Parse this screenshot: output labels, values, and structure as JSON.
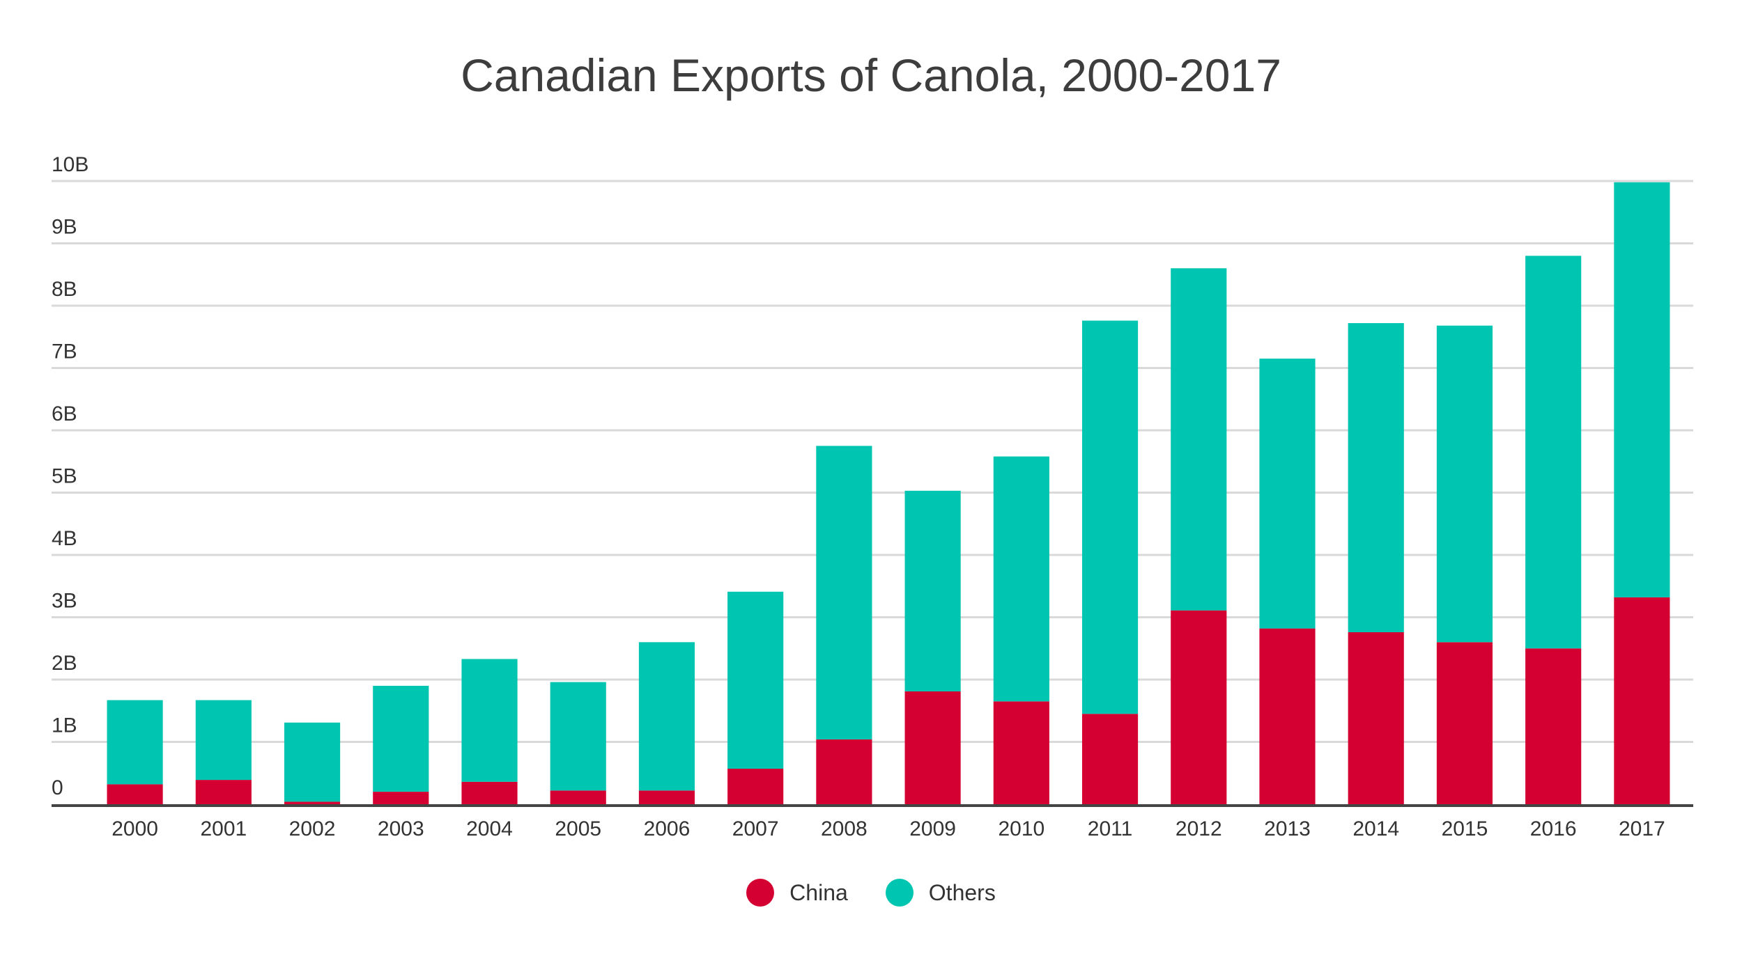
{
  "chart_data": {
    "type": "bar",
    "stacked": true,
    "title": "Canadian Exports of Canola, 2000-2017",
    "xlabel": "",
    "ylabel": "",
    "ylim": [
      0,
      10
    ],
    "y_unit": "B",
    "yticks": [
      "0",
      "1B",
      "2B",
      "3B",
      "4B",
      "5B",
      "6B",
      "7B",
      "8B",
      "9B",
      "10B"
    ],
    "grid": true,
    "legend_position": "bottom",
    "categories": [
      "2000",
      "2001",
      "2002",
      "2003",
      "2004",
      "2005",
      "2006",
      "2007",
      "2008",
      "2009",
      "2010",
      "2011",
      "2012",
      "2013",
      "2014",
      "2015",
      "2016",
      "2017"
    ],
    "series": [
      {
        "name": "China",
        "color": "#d50032",
        "values": [
          0.32,
          0.39,
          0.04,
          0.2,
          0.36,
          0.22,
          0.22,
          0.57,
          1.04,
          1.81,
          1.65,
          1.45,
          3.11,
          2.82,
          2.76,
          2.6,
          2.5,
          3.32
        ]
      },
      {
        "name": "Others",
        "color": "#00c5b0",
        "values": [
          1.35,
          1.28,
          1.27,
          1.7,
          1.97,
          1.74,
          2.38,
          2.84,
          4.71,
          3.22,
          3.93,
          6.31,
          5.49,
          4.33,
          4.96,
          5.08,
          6.3,
          6.66
        ]
      }
    ]
  }
}
